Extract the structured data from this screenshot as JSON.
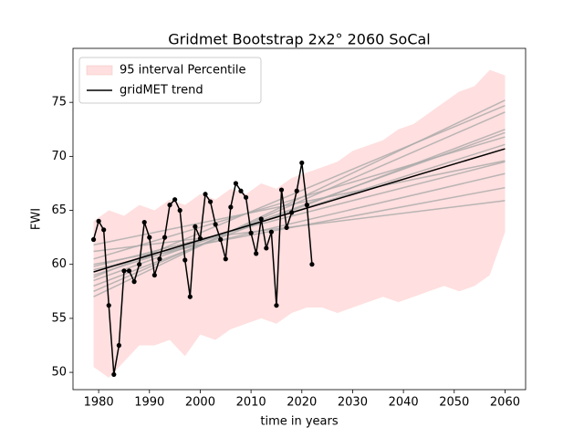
{
  "chart_data": {
    "type": "line",
    "title": "Gridmet Bootstrap 2x2° 2060 SoCal",
    "xlabel": "time in years",
    "ylabel": "FWI",
    "xlim": [
      1974.95,
      2064.05
    ],
    "ylim": [
      48.4,
      80.0
    ],
    "xticks": [
      1980,
      1990,
      2000,
      2010,
      2020,
      2030,
      2040,
      2050,
      2060
    ],
    "yticks": [
      50,
      55,
      60,
      65,
      70,
      75
    ],
    "legend": "upper left",
    "band": {
      "name": "95 interval Percentile",
      "color": "#ffdfdf",
      "x": [
        1979,
        1982,
        1985,
        1988,
        1991,
        1994,
        1997,
        2000,
        2003,
        2006,
        2009,
        2012,
        2015,
        2018,
        2021,
        2024,
        2027,
        2030,
        2033,
        2036,
        2039,
        2042,
        2045,
        2048,
        2051,
        2054,
        2057,
        2060
      ],
      "upper": [
        64.0,
        65.0,
        64.5,
        65.5,
        65.0,
        66.0,
        65.5,
        66.5,
        66.0,
        67.0,
        66.5,
        67.5,
        67.0,
        68.0,
        68.5,
        69.0,
        69.5,
        70.5,
        71.0,
        71.5,
        72.5,
        73.0,
        74.0,
        75.0,
        76.0,
        76.5,
        78.0,
        77.5
      ],
      "lower": [
        50.5,
        49.5,
        51.0,
        52.5,
        52.5,
        53.0,
        51.5,
        53.5,
        53.0,
        54.0,
        54.5,
        55.0,
        54.5,
        55.5,
        56.0,
        56.0,
        55.5,
        56.0,
        56.5,
        57.0,
        56.5,
        57.0,
        57.5,
        58.0,
        57.5,
        58.0,
        59.0,
        63.0
      ]
    },
    "trend_lines": {
      "color": "#a9a9a9",
      "x": [
        1979,
        2060
      ],
      "series": [
        {
          "values": [
            59.8,
            69.5
          ]
        },
        {
          "values": [
            61.2,
            65.9
          ]
        },
        {
          "values": [
            60.0,
            67.1
          ]
        },
        {
          "values": [
            58.0,
            72.5
          ]
        },
        {
          "values": [
            57.0,
            75.2
          ]
        },
        {
          "values": [
            58.5,
            72.2
          ]
        },
        {
          "values": [
            59.5,
            68.4
          ]
        },
        {
          "values": [
            60.5,
            71.8
          ]
        },
        {
          "values": [
            58.8,
            74.7
          ]
        },
        {
          "values": [
            57.5,
            74.1
          ]
        },
        {
          "values": [
            59.0,
            71.1
          ]
        },
        {
          "values": [
            61.8,
            69.6
          ]
        }
      ]
    },
    "series": [
      {
        "color": "#000000",
        "markers": true,
        "x": [
          1979,
          1980,
          1981,
          1982,
          1983,
          1984,
          1985,
          1986,
          1987,
          1988,
          1989,
          1990,
          1991,
          1992,
          1993,
          1994,
          1995,
          1996,
          1997,
          1998,
          1999,
          2000,
          2001,
          2002,
          2003,
          2004,
          2005,
          2006,
          2007,
          2008,
          2009,
          2010,
          2011,
          2012,
          2013,
          2014,
          2015,
          2016,
          2017,
          2018,
          2019,
          2020,
          2021,
          2022
        ],
        "values": [
          62.3,
          64.0,
          63.2,
          56.2,
          49.8,
          52.5,
          59.4,
          59.4,
          58.4,
          60.0,
          63.9,
          62.5,
          59.0,
          60.5,
          62.5,
          65.5,
          66.0,
          65.0,
          60.4,
          57.0,
          63.5,
          62.4,
          66.5,
          65.8,
          63.7,
          62.3,
          60.5,
          65.3,
          67.5,
          66.8,
          66.2,
          62.9,
          61.0,
          64.2,
          61.5,
          63.0,
          56.2,
          66.9,
          63.4,
          64.8,
          66.8,
          69.4,
          65.5,
          60.0
        ]
      },
      {
        "name": "gridMET trend",
        "color": "#000000",
        "markers": false,
        "x": [
          1979,
          2060
        ],
        "values": [
          59.3,
          70.7
        ]
      }
    ]
  }
}
